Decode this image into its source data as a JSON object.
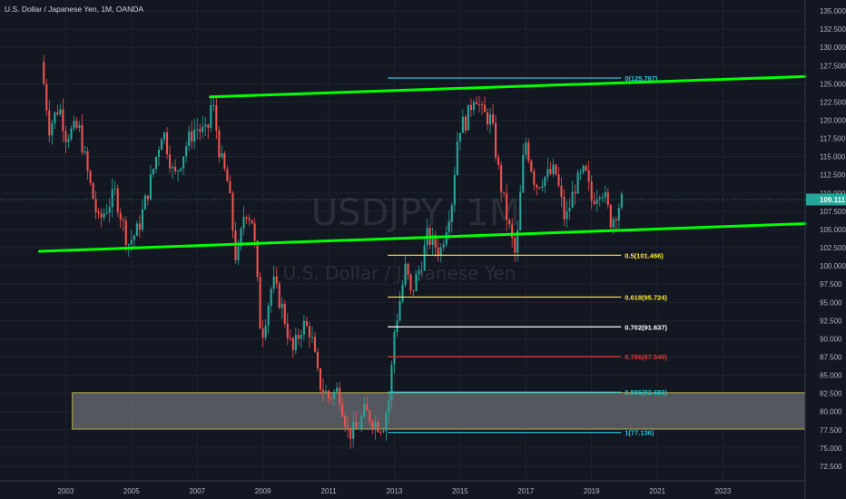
{
  "header": {
    "title": "U.S. Dollar / Japanese Yen, 1M, OANDA"
  },
  "watermark": {
    "symbol": "USDJPY, 1M",
    "description": "U.S. Dollar / Japanese Yen"
  },
  "price_axis": {
    "ticks": [
      "135.000",
      "132.500",
      "130.000",
      "127.500",
      "125.000",
      "122.500",
      "120.000",
      "117.500",
      "115.000",
      "112.500",
      "110.000",
      "107.500",
      "105.000",
      "102.500",
      "100.000",
      "97.500",
      "95.000",
      "92.500",
      "90.000",
      "87.500",
      "85.000",
      "82.500",
      "80.000",
      "77.500",
      "75.000",
      "72.500"
    ],
    "last_price": "109.111"
  },
  "time_axis": {
    "ticks": [
      "2003",
      "2005",
      "2007",
      "2009",
      "2011",
      "2013",
      "2015",
      "2017",
      "2019",
      "2021",
      "2023"
    ]
  },
  "colors": {
    "background": "#131722",
    "up": "#26a69a",
    "down": "#ef5350",
    "trendline": "#00ff00",
    "zone_fill": "#6b6d73",
    "zone_border": "#d4c94a",
    "last_price": "#26a69a",
    "fib_0": "#26c6da",
    "fib_05": "#ffeb3b",
    "fib_0618": "#ffeb3b",
    "fib_0702": "#ffffff",
    "fib_0786": "#e53935",
    "fib_0886": "#26c6da",
    "fib_1": "#26c6da"
  },
  "chart_data": {
    "type": "candlestick",
    "title": "U.S. Dollar / Japanese Yen, 1M, OANDA",
    "ylim": [
      70.5,
      136.5
    ],
    "xlim": [
      2001.0,
      2025.5
    ],
    "price_series": {
      "interval": "1M",
      "points": [
        [
          2002.25,
          128.0
        ],
        [
          2002.5,
          119.0
        ],
        [
          2002.8,
          122.0
        ],
        [
          2003.0,
          118.0
        ],
        [
          2003.4,
          119.0
        ],
        [
          2003.7,
          112.0
        ],
        [
          2004.0,
          106.0
        ],
        [
          2004.5,
          110.0
        ],
        [
          2004.9,
          103.0
        ],
        [
          2005.2,
          105.0
        ],
        [
          2005.6,
          112.0
        ],
        [
          2005.95,
          119.0
        ],
        [
          2006.3,
          112.0
        ],
        [
          2006.7,
          117.0
        ],
        [
          2006.95,
          119.0
        ],
        [
          2007.3,
          118.0
        ],
        [
          2007.45,
          123.0
        ],
        [
          2007.7,
          115.0
        ],
        [
          2007.95,
          111.0
        ],
        [
          2008.2,
          100.0
        ],
        [
          2008.45,
          108.0
        ],
        [
          2008.7,
          106.0
        ],
        [
          2008.95,
          90.0
        ],
        [
          2009.3,
          98.0
        ],
        [
          2009.6,
          94.0
        ],
        [
          2009.9,
          88.0
        ],
        [
          2010.2,
          92.0
        ],
        [
          2010.45,
          91.0
        ],
        [
          2010.7,
          84.0
        ],
        [
          2011.0,
          82.0
        ],
        [
          2011.3,
          83.0
        ],
        [
          2011.6,
          77.0
        ],
        [
          2011.85,
          77.5
        ],
        [
          2012.1,
          80.0
        ],
        [
          2012.4,
          78.5
        ],
        [
          2012.65,
          78.0
        ],
        [
          2012.85,
          82.0
        ],
        [
          2013.0,
          91.0
        ],
        [
          2013.35,
          100.0
        ],
        [
          2013.5,
          96.0
        ],
        [
          2013.8,
          100.0
        ],
        [
          2014.0,
          104.0
        ],
        [
          2014.4,
          102.0
        ],
        [
          2014.75,
          109.0
        ],
        [
          2014.95,
          119.0
        ],
        [
          2015.2,
          120.0
        ],
        [
          2015.45,
          124.0
        ],
        [
          2015.65,
          121.0
        ],
        [
          2015.95,
          120.0
        ],
        [
          2016.2,
          112.0
        ],
        [
          2016.45,
          106.0
        ],
        [
          2016.7,
          101.0
        ],
        [
          2016.9,
          114.0
        ],
        [
          2017.0,
          117.0
        ],
        [
          2017.3,
          111.0
        ],
        [
          2017.5,
          112.0
        ],
        [
          2017.9,
          113.0
        ],
        [
          2018.2,
          106.0
        ],
        [
          2018.5,
          111.0
        ],
        [
          2018.8,
          113.0
        ],
        [
          2019.0,
          109.0
        ],
        [
          2019.3,
          111.0
        ],
        [
          2019.6,
          106.0
        ],
        [
          2019.85,
          108.5
        ],
        [
          2019.95,
          109.1
        ]
      ]
    },
    "trendlines": [
      {
        "x": [
          2007.4,
          2025.5
        ],
        "y": [
          123.2,
          126.0
        ]
      },
      {
        "x": [
          2002.2,
          2025.5
        ],
        "y": [
          102.0,
          105.8
        ]
      }
    ],
    "fib_levels": [
      {
        "label": "0(125.787)",
        "ratio": 0,
        "value": 125.787,
        "x": [
          2012.8,
          2019.9
        ]
      },
      {
        "label": "0.5(101.466)",
        "ratio": 0.5,
        "value": 101.466,
        "x": [
          2012.8,
          2019.9
        ]
      },
      {
        "label": "0.618(95.724)",
        "ratio": 0.618,
        "value": 95.724,
        "x": [
          2012.8,
          2019.9
        ]
      },
      {
        "label": "0.702(91.637)",
        "ratio": 0.702,
        "value": 91.637,
        "x": [
          2012.8,
          2019.9
        ]
      },
      {
        "label": "0.786(87.549)",
        "ratio": 0.786,
        "value": 87.549,
        "x": [
          2012.8,
          2019.9
        ]
      },
      {
        "label": "0.886(82.683)",
        "ratio": 0.886,
        "value": 82.683,
        "x": [
          2012.8,
          2019.9
        ]
      },
      {
        "label": "1(77.136)",
        "ratio": 1,
        "value": 77.136,
        "x": [
          2012.8,
          2019.9
        ]
      }
    ],
    "zone": {
      "x": [
        2003.2,
        2025.5
      ],
      "y": [
        77.6,
        82.6
      ]
    },
    "last_price": 109.111
  }
}
